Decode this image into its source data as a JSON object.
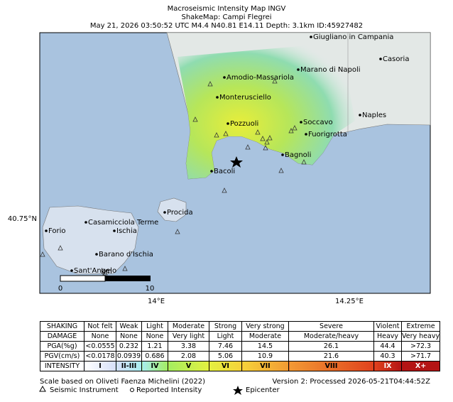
{
  "header": {
    "title": "Macroseismic Intensity Map INGV",
    "subtitle": "ShakeMap: Campi Flegrei",
    "event": "May 21, 2026 03:50:52 UTC M4.4 N40.81 E14.11 Depth: 3.1km ID:45927482"
  },
  "map": {
    "places": [
      "Giugliano in Campania",
      "Casoria",
      "Marano di Napoli",
      "Amodio-Massariola",
      "Monterusciello",
      "Naples",
      "Soccavo",
      "Pozzuoli",
      "Fuorigrotta",
      "Bagnoli",
      "Bacoli",
      "Procida",
      "Casamicciola Terme",
      "Forio",
      "Ischia",
      "Barano d'Ischia",
      "Sant'Angelo"
    ],
    "axis_labels": {
      "lat": "40.75°N",
      "lon_left": "14°E",
      "lon_right": "14.25°E"
    },
    "scale_bar": {
      "start": "0",
      "end": "10",
      "unit": "km"
    }
  },
  "legend": {
    "rows": [
      [
        "SHAKING",
        "Not felt",
        "Weak",
        "Light",
        "Moderate",
        "Strong",
        "Very strong",
        "Severe",
        "Violent",
        "Extreme"
      ],
      [
        "DAMAGE",
        "None",
        "None",
        "None",
        "Very light",
        "Light",
        "Moderate",
        "Moderate/heavy",
        "Heavy",
        "Very heavy"
      ],
      [
        "PGA(%g)",
        "<0.0555",
        "0.232",
        "1.21",
        "3.38",
        "7.46",
        "14.5",
        "26.1",
        "44.4",
        ">72.3"
      ],
      [
        "PGV(cm/s)",
        "<0.0178",
        "0.0939",
        "0.686",
        "2.08",
        "5.06",
        "10.9",
        "21.6",
        "40.3",
        ">71.7"
      ],
      [
        "INTENSITY",
        "I",
        "II-III",
        "IV",
        "V",
        "VI",
        "VII",
        "VIII",
        "IX",
        "X+"
      ]
    ],
    "intensity_colors": [
      "#ffffff",
      "#d6e0f8",
      "#a8eef0",
      "#a4ee60",
      "#e4f040",
      "#f6d23a",
      "#f29a34",
      "#e0421e",
      "#b41414"
    ]
  },
  "footer": {
    "scale_note": "Scale based on Oliveti Faenza Michelini (2022)",
    "version": "Version 2: Processed 2026-05-21T04:44:52Z",
    "instrument": "Seismic Instrument",
    "reported": "Reported Intensity",
    "epicenter": "Epicenter"
  }
}
